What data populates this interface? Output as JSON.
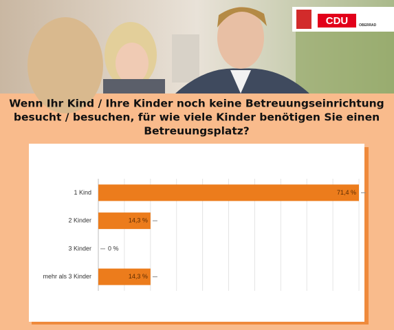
{
  "logo": {
    "name": "CDU",
    "place": "OBERRAD"
  },
  "chart_data": {
    "type": "bar",
    "orientation": "horizontal",
    "title": [
      "Wenn Ihr Kind / Ihre Kinder noch keine Betreuungseinrichtung",
      "besucht / besuchen, für wie viele Kinder benötigen Sie einen",
      "Betreuungsplatz?"
    ],
    "categories": [
      "1 Kind",
      "2 Kinder",
      "3 Kinder",
      "mehr als 3 Kinder"
    ],
    "values": [
      71.4,
      14.3,
      0,
      14.3
    ],
    "value_labels": [
      "71,4 %",
      "14,3 %",
      "0 %",
      "14,3 %"
    ],
    "color": "#ec7c1c",
    "xlim": [
      0,
      71.4
    ],
    "grid": true
  }
}
